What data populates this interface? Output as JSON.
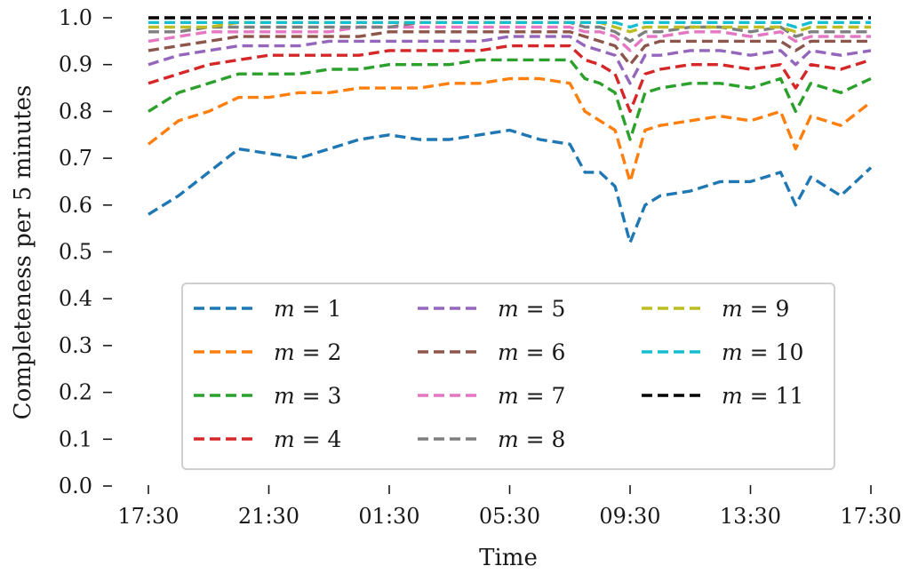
{
  "chart_data": {
    "type": "line",
    "title": "",
    "xlabel": "Time",
    "ylabel": "Completeness per 5 minutes",
    "ylim": [
      0,
      1
    ],
    "x_range_hours": [
      0,
      24
    ],
    "x_ticks": [
      {
        "hours": 0,
        "label": "17:30"
      },
      {
        "hours": 4,
        "label": "21:30"
      },
      {
        "hours": 8,
        "label": "01:30"
      },
      {
        "hours": 12,
        "label": "05:30"
      },
      {
        "hours": 16,
        "label": "09:30"
      },
      {
        "hours": 20,
        "label": "13:30"
      },
      {
        "hours": 24,
        "label": "17:30"
      }
    ],
    "y_ticks": [
      {
        "value": 0.0,
        "label": "0.0"
      },
      {
        "value": 0.1,
        "label": "0.1"
      },
      {
        "value": 0.2,
        "label": "0.2"
      },
      {
        "value": 0.3,
        "label": "0.3"
      },
      {
        "value": 0.4,
        "label": "0.4"
      },
      {
        "value": 0.5,
        "label": "0.5"
      },
      {
        "value": 0.6,
        "label": "0.6"
      },
      {
        "value": 0.7,
        "label": "0.7"
      },
      {
        "value": 0.8,
        "label": "0.8"
      },
      {
        "value": 0.9,
        "label": "0.9"
      },
      {
        "value": 1.0,
        "label": "1.0"
      }
    ],
    "grid": false,
    "legend_placement": "lower-center",
    "legend_columns": 3,
    "x": [
      0,
      1,
      2,
      3,
      4,
      5,
      6,
      7,
      8,
      9,
      10,
      11,
      12,
      13,
      14,
      14.5,
      15,
      15.5,
      16,
      16.5,
      17,
      18,
      19,
      20,
      21,
      21.5,
      22,
      23,
      24
    ],
    "series": [
      {
        "name": "1",
        "name_prefix": "m = ",
        "color": "#1f77b4",
        "values": [
          0.58,
          0.62,
          0.67,
          0.72,
          0.71,
          0.7,
          0.72,
          0.74,
          0.75,
          0.74,
          0.74,
          0.75,
          0.76,
          0.74,
          0.73,
          0.67,
          0.67,
          0.64,
          0.52,
          0.6,
          0.62,
          0.63,
          0.65,
          0.65,
          0.67,
          0.6,
          0.66,
          0.62,
          0.68
        ]
      },
      {
        "name": "2",
        "name_prefix": "m = ",
        "color": "#ff7f0e",
        "values": [
          0.73,
          0.78,
          0.8,
          0.83,
          0.83,
          0.84,
          0.84,
          0.85,
          0.85,
          0.85,
          0.86,
          0.86,
          0.87,
          0.87,
          0.86,
          0.8,
          0.78,
          0.76,
          0.65,
          0.76,
          0.77,
          0.78,
          0.79,
          0.78,
          0.8,
          0.72,
          0.79,
          0.77,
          0.82
        ]
      },
      {
        "name": "3",
        "name_prefix": "m = ",
        "color": "#2ca02c",
        "values": [
          0.8,
          0.84,
          0.86,
          0.88,
          0.88,
          0.88,
          0.89,
          0.89,
          0.9,
          0.9,
          0.9,
          0.91,
          0.91,
          0.91,
          0.91,
          0.87,
          0.86,
          0.84,
          0.74,
          0.84,
          0.85,
          0.86,
          0.86,
          0.85,
          0.87,
          0.8,
          0.86,
          0.84,
          0.87
        ]
      },
      {
        "name": "4",
        "name_prefix": "m = ",
        "color": "#d62728",
        "values": [
          0.86,
          0.88,
          0.9,
          0.91,
          0.92,
          0.92,
          0.92,
          0.92,
          0.93,
          0.93,
          0.93,
          0.93,
          0.94,
          0.94,
          0.94,
          0.91,
          0.9,
          0.88,
          0.8,
          0.88,
          0.89,
          0.9,
          0.9,
          0.89,
          0.9,
          0.85,
          0.9,
          0.89,
          0.91
        ]
      },
      {
        "name": "5",
        "name_prefix": "m = ",
        "color": "#9467bd",
        "values": [
          0.9,
          0.92,
          0.93,
          0.94,
          0.94,
          0.94,
          0.95,
          0.95,
          0.95,
          0.95,
          0.95,
          0.95,
          0.96,
          0.96,
          0.96,
          0.94,
          0.93,
          0.92,
          0.86,
          0.92,
          0.92,
          0.93,
          0.93,
          0.92,
          0.93,
          0.9,
          0.93,
          0.92,
          0.93
        ]
      },
      {
        "name": "6",
        "name_prefix": "m = ",
        "color": "#8c564b",
        "values": [
          0.93,
          0.94,
          0.95,
          0.96,
          0.96,
          0.96,
          0.96,
          0.96,
          0.97,
          0.97,
          0.97,
          0.97,
          0.97,
          0.97,
          0.97,
          0.96,
          0.95,
          0.94,
          0.9,
          0.94,
          0.95,
          0.95,
          0.95,
          0.95,
          0.95,
          0.93,
          0.95,
          0.95,
          0.95
        ]
      },
      {
        "name": "7",
        "name_prefix": "m = ",
        "color": "#e377c2",
        "values": [
          0.95,
          0.96,
          0.97,
          0.97,
          0.97,
          0.97,
          0.97,
          0.98,
          0.98,
          0.98,
          0.98,
          0.98,
          0.98,
          0.98,
          0.98,
          0.97,
          0.97,
          0.96,
          0.93,
          0.96,
          0.96,
          0.97,
          0.97,
          0.96,
          0.97,
          0.95,
          0.96,
          0.96,
          0.96
        ]
      },
      {
        "name": "8",
        "name_prefix": "m = ",
        "color": "#7f7f7f",
        "values": [
          0.97,
          0.97,
          0.98,
          0.98,
          0.98,
          0.98,
          0.98,
          0.98,
          0.98,
          0.99,
          0.99,
          0.99,
          0.99,
          0.99,
          0.99,
          0.98,
          0.98,
          0.97,
          0.95,
          0.97,
          0.97,
          0.98,
          0.98,
          0.97,
          0.98,
          0.96,
          0.97,
          0.97,
          0.97
        ]
      },
      {
        "name": "9",
        "name_prefix": "m = ",
        "color": "#bcbd22",
        "values": [
          0.98,
          0.98,
          0.98,
          0.99,
          0.99,
          0.99,
          0.99,
          0.99,
          0.99,
          0.99,
          0.99,
          0.99,
          0.99,
          0.99,
          0.99,
          0.99,
          0.99,
          0.98,
          0.97,
          0.98,
          0.98,
          0.98,
          0.98,
          0.98,
          0.98,
          0.97,
          0.98,
          0.98,
          0.98
        ]
      },
      {
        "name": "10",
        "name_prefix": "m = ",
        "color": "#17becf",
        "values": [
          0.99,
          0.99,
          0.99,
          0.99,
          0.99,
          0.99,
          0.99,
          0.99,
          0.99,
          0.99,
          0.99,
          0.99,
          0.99,
          0.99,
          0.99,
          0.99,
          0.99,
          0.99,
          0.98,
          0.99,
          0.99,
          0.99,
          0.99,
          0.99,
          0.99,
          0.98,
          0.99,
          0.99,
          0.99
        ]
      },
      {
        "name": "11",
        "name_prefix": "m = ",
        "color": "#000000",
        "values": [
          1.0,
          1.0,
          1.0,
          1.0,
          1.0,
          1.0,
          1.0,
          1.0,
          1.0,
          1.0,
          1.0,
          1.0,
          1.0,
          1.0,
          1.0,
          1.0,
          1.0,
          1.0,
          1.0,
          1.0,
          1.0,
          1.0,
          1.0,
          1.0,
          1.0,
          1.0,
          1.0,
          1.0,
          1.0
        ]
      }
    ]
  }
}
